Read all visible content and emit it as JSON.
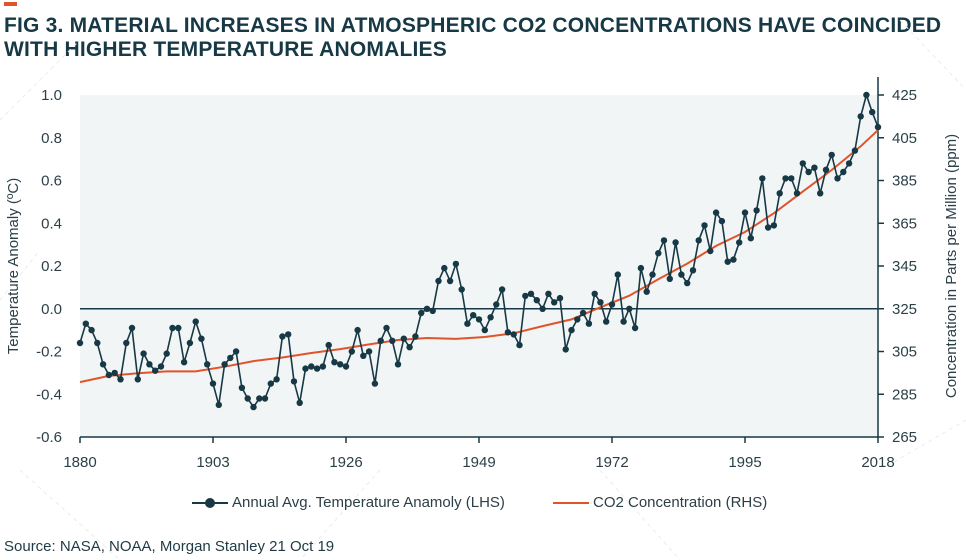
{
  "title": {
    "line1": "FIG 3. MATERIAL INCREASES IN ATMOSPHERIC CO2 CONCENTRATIONS HAVE COINCIDED",
    "line2": "WITH HIGHER TEMPERATURE ANOMALIES"
  },
  "source": "Source: NASA, NOAA, Morgan Stanley 21 Oct 19",
  "colors": {
    "accent": "#e0542b",
    "temperature": "#173845",
    "co2": "#e0542b",
    "plot_bg": "#f1f5f5",
    "axis": "#173845"
  },
  "chart_data": {
    "type": "line",
    "xlabel": "",
    "ylabel_left": "Temperature Anomaly (ºC)",
    "ylabel_right": "Concentration in Parts per Million (ppm)",
    "xlim": [
      1880,
      2018
    ],
    "ylim_left": [
      -0.6,
      1.0
    ],
    "ylim_right": [
      265,
      425
    ],
    "x_ticks": [
      "1880",
      "1903",
      "1926",
      "1949",
      "1972",
      "1995",
      "2018"
    ],
    "y_ticks_left": [
      "1.0",
      "0.8",
      "0.6",
      "0.4",
      "0.2",
      "0.0",
      "-0.2",
      "-0.4",
      "-0.6"
    ],
    "y_ticks_right": [
      "425",
      "405",
      "385",
      "365",
      "345",
      "325",
      "305",
      "285",
      "265"
    ],
    "grid": false,
    "legend_position": "bottom",
    "series": [
      {
        "name": "Annual Avg. Temperature Anamoly (LHS)",
        "axis": "left",
        "marker": "circle",
        "x": [
          1880,
          1881,
          1882,
          1883,
          1884,
          1885,
          1886,
          1887,
          1888,
          1889,
          1890,
          1891,
          1892,
          1893,
          1894,
          1895,
          1896,
          1897,
          1898,
          1899,
          1900,
          1901,
          1902,
          1903,
          1904,
          1905,
          1906,
          1907,
          1908,
          1909,
          1910,
          1911,
          1912,
          1913,
          1914,
          1915,
          1916,
          1917,
          1918,
          1919,
          1920,
          1921,
          1922,
          1923,
          1924,
          1925,
          1926,
          1927,
          1928,
          1929,
          1930,
          1931,
          1932,
          1933,
          1934,
          1935,
          1936,
          1937,
          1938,
          1939,
          1940,
          1941,
          1942,
          1943,
          1944,
          1945,
          1946,
          1947,
          1948,
          1949,
          1950,
          1951,
          1952,
          1953,
          1954,
          1955,
          1956,
          1957,
          1958,
          1959,
          1960,
          1961,
          1962,
          1963,
          1964,
          1965,
          1966,
          1967,
          1968,
          1969,
          1970,
          1971,
          1972,
          1973,
          1974,
          1975,
          1976,
          1977,
          1978,
          1979,
          1980,
          1981,
          1982,
          1983,
          1984,
          1985,
          1986,
          1987,
          1988,
          1989,
          1990,
          1991,
          1992,
          1993,
          1994,
          1995,
          1996,
          1997,
          1998,
          1999,
          2000,
          2001,
          2002,
          2003,
          2004,
          2005,
          2006,
          2007,
          2008,
          2009,
          2010,
          2011,
          2012,
          2013,
          2014,
          2015,
          2016,
          2017,
          2018
        ],
        "y": [
          -0.16,
          -0.07,
          -0.1,
          -0.16,
          -0.26,
          -0.31,
          -0.3,
          -0.33,
          -0.16,
          -0.09,
          -0.33,
          -0.21,
          -0.26,
          -0.29,
          -0.27,
          -0.21,
          -0.09,
          -0.09,
          -0.25,
          -0.16,
          -0.06,
          -0.14,
          -0.26,
          -0.35,
          -0.45,
          -0.26,
          -0.23,
          -0.2,
          -0.37,
          -0.42,
          -0.46,
          -0.42,
          -0.42,
          -0.35,
          -0.33,
          -0.13,
          -0.12,
          -0.34,
          -0.44,
          -0.28,
          -0.27,
          -0.28,
          -0.27,
          -0.17,
          -0.25,
          -0.26,
          -0.27,
          -0.2,
          -0.1,
          -0.22,
          -0.2,
          -0.35,
          -0.15,
          -0.09,
          -0.15,
          -0.26,
          -0.14,
          -0.18,
          -0.13,
          -0.02,
          0.0,
          -0.01,
          0.13,
          0.19,
          0.13,
          0.21,
          0.09,
          -0.07,
          -0.03,
          -0.05,
          -0.1,
          -0.04,
          0.02,
          0.09,
          -0.11,
          -0.12,
          -0.17,
          0.06,
          0.07,
          0.04,
          0.0,
          0.07,
          0.03,
          0.05,
          -0.19,
          -0.1,
          -0.05,
          -0.02,
          -0.07,
          0.07,
          0.03,
          -0.06,
          0.02,
          0.16,
          -0.06,
          0.0,
          -0.09,
          0.19,
          0.08,
          0.16,
          0.26,
          0.32,
          0.14,
          0.31,
          0.16,
          0.12,
          0.18,
          0.32,
          0.39,
          0.27,
          0.45,
          0.41,
          0.22,
          0.23,
          0.31,
          0.45,
          0.33,
          0.46,
          0.61,
          0.38,
          0.39,
          0.54,
          0.61,
          0.61,
          0.54,
          0.68,
          0.64,
          0.66,
          0.54,
          0.65,
          0.72,
          0.61,
          0.64,
          0.68,
          0.74,
          0.9,
          1.0,
          0.92,
          0.85
        ]
      },
      {
        "name": "CO2 Concentration (RHS)",
        "axis": "right",
        "marker": "none",
        "x": [
          1880,
          1885,
          1890,
          1895,
          1900,
          1905,
          1910,
          1915,
          1920,
          1925,
          1930,
          1935,
          1940,
          1945,
          1950,
          1955,
          1960,
          1965,
          1970,
          1975,
          1980,
          1985,
          1990,
          1995,
          2000,
          2005,
          2010,
          2015,
          2018
        ],
        "y": [
          290.7,
          293.6,
          294.8,
          295.7,
          295.7,
          297.9,
          300.5,
          302.2,
          304.3,
          306.1,
          308.3,
          310.4,
          311.3,
          310.9,
          311.8,
          313.5,
          316.9,
          320.0,
          325.7,
          331.1,
          338.8,
          346.1,
          354.4,
          360.9,
          369.7,
          379.8,
          389.9,
          401.0,
          408.6
        ]
      }
    ]
  }
}
